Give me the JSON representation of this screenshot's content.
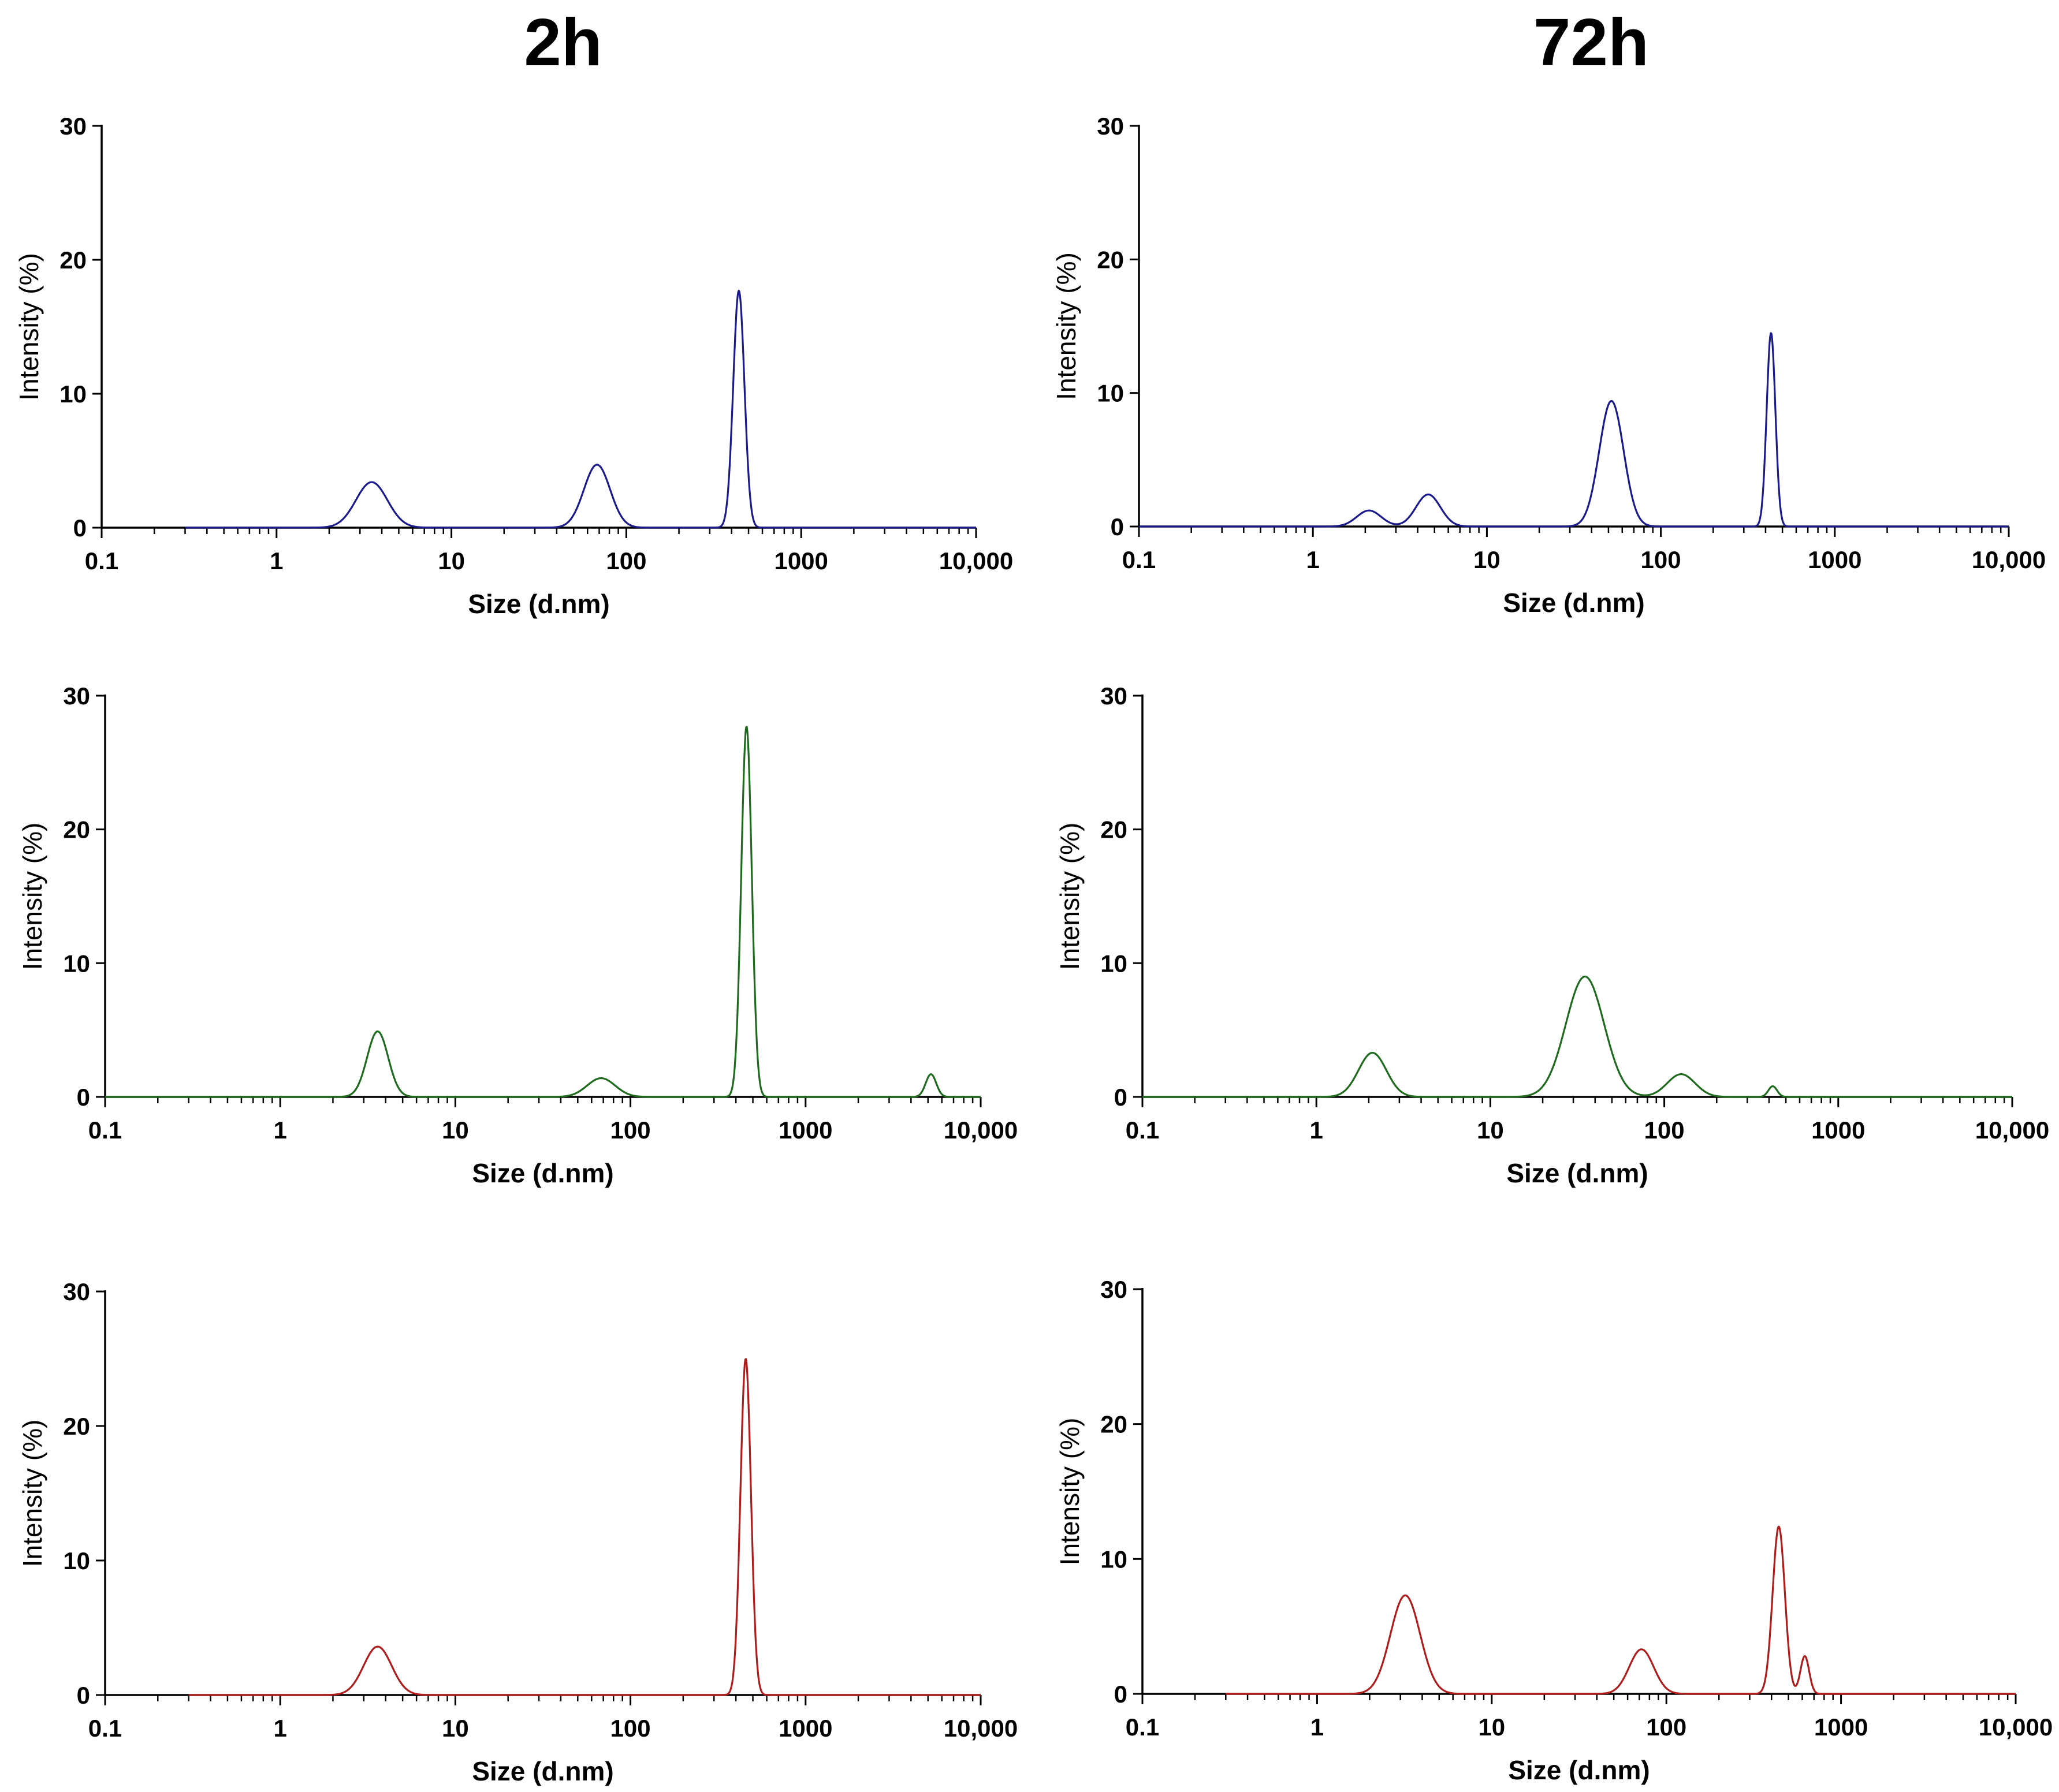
{
  "column_titles": [
    "2h",
    "72h"
  ],
  "series_colors": {
    "blue": "#1a1a8c",
    "green": "#1e6b1e",
    "red": "#b01c1c"
  },
  "chart_data": [
    {
      "id": "p00",
      "column": "2h",
      "row": 1,
      "type": "line",
      "color": "blue",
      "xlabel": "Size (d.nm)",
      "ylabel": "Intensity (%)",
      "xscale": "log",
      "xlim": [
        0.1,
        10000
      ],
      "ylim": [
        0,
        30
      ],
      "x_ticks": [
        "0.1",
        "1",
        "10",
        "100",
        "1000",
        "10,000"
      ],
      "y_ticks": [
        "0",
        "10",
        "20",
        "30"
      ],
      "baseline_range": [
        0.3,
        10000
      ],
      "peaks": [
        {
          "x": 3.5,
          "y": 3.4,
          "w": 0.09
        },
        {
          "x": 68,
          "y": 4.7,
          "w": 0.075
        },
        {
          "x": 440,
          "y": 17.7,
          "w": 0.032
        }
      ]
    },
    {
      "id": "p10",
      "column": "2h",
      "row": 2,
      "type": "line",
      "color": "green",
      "xlabel": "Size (d.nm)",
      "ylabel": "Intensity (%)",
      "xscale": "log",
      "xlim": [
        0.1,
        10000
      ],
      "ylim": [
        0,
        30
      ],
      "x_ticks": [
        "0.1",
        "1",
        "10",
        "100",
        "1000",
        "10,000"
      ],
      "y_ticks": [
        "0",
        "10",
        "20",
        "30"
      ],
      "baseline_range": [
        0.1,
        10000
      ],
      "peaks": [
        {
          "x": 3.6,
          "y": 4.9,
          "w": 0.06
        },
        {
          "x": 68,
          "y": 1.4,
          "w": 0.08
        },
        {
          "x": 460,
          "y": 27.7,
          "w": 0.03
        },
        {
          "x": 5200,
          "y": 1.7,
          "w": 0.03
        }
      ]
    },
    {
      "id": "p20",
      "column": "2h",
      "row": 3,
      "type": "line",
      "color": "red",
      "xlabel": "Size (d.nm)",
      "ylabel": "Intensity (%)",
      "xscale": "log",
      "xlim": [
        0.1,
        10000
      ],
      "ylim": [
        0,
        30
      ],
      "x_ticks": [
        "0.1",
        "1",
        "10",
        "100",
        "1000",
        "10,000"
      ],
      "y_ticks": [
        "0",
        "10",
        "20",
        "30"
      ],
      "baseline_range": [
        0.3,
        10000
      ],
      "peaks": [
        {
          "x": 3.6,
          "y": 3.6,
          "w": 0.08
        },
        {
          "x": 455,
          "y": 25.0,
          "w": 0.03
        }
      ]
    },
    {
      "id": "p01",
      "column": "72h",
      "row": 1,
      "type": "line",
      "color": "blue",
      "xlabel": "Size (d.nm)",
      "ylabel": "Intensity (%)",
      "xscale": "log",
      "xlim": [
        0.1,
        10000
      ],
      "ylim": [
        0,
        30
      ],
      "x_ticks": [
        "0.1",
        "1",
        "10",
        "100",
        "1000",
        "10,000"
      ],
      "y_ticks": [
        "0",
        "10",
        "20",
        "30"
      ],
      "baseline_range": [
        0.1,
        10000
      ],
      "peaks": [
        {
          "x": 2.1,
          "y": 1.2,
          "w": 0.07
        },
        {
          "x": 4.6,
          "y": 2.4,
          "w": 0.07
        },
        {
          "x": 52,
          "y": 9.4,
          "w": 0.07
        },
        {
          "x": 430,
          "y": 14.5,
          "w": 0.025
        }
      ]
    },
    {
      "id": "p11",
      "column": "72h",
      "row": 2,
      "type": "line",
      "color": "green",
      "xlabel": "Size (d.nm)",
      "ylabel": "Intensity (%)",
      "xscale": "log",
      "xlim": [
        0.1,
        10000
      ],
      "ylim": [
        0,
        30
      ],
      "x_ticks": [
        "0.1",
        "1",
        "10",
        "100",
        "1000",
        "10,000"
      ],
      "y_ticks": [
        "0",
        "10",
        "20",
        "30"
      ],
      "baseline_range": [
        0.1,
        10000
      ],
      "peaks": [
        {
          "x": 2.1,
          "y": 3.3,
          "w": 0.08
        },
        {
          "x": 35,
          "y": 9.0,
          "w": 0.11
        },
        {
          "x": 125,
          "y": 1.7,
          "w": 0.08
        },
        {
          "x": 420,
          "y": 0.8,
          "w": 0.025
        }
      ]
    },
    {
      "id": "p21",
      "column": "72h",
      "row": 3,
      "type": "line",
      "color": "red",
      "xlabel": "Size (d.nm)",
      "ylabel": "Intensity (%)",
      "xscale": "log",
      "xlim": [
        0.1,
        10000
      ],
      "ylim": [
        0,
        30
      ],
      "x_ticks": [
        "0.1",
        "1",
        "10",
        "100",
        "1000",
        "10,000"
      ],
      "y_ticks": [
        "0",
        "10",
        "20",
        "30"
      ],
      "baseline_range": [
        0.3,
        10000
      ],
      "peaks": [
        {
          "x": 3.2,
          "y": 7.3,
          "w": 0.085
        },
        {
          "x": 72,
          "y": 3.3,
          "w": 0.07
        },
        {
          "x": 440,
          "y": 12.4,
          "w": 0.035
        },
        {
          "x": 620,
          "y": 2.8,
          "w": 0.025
        }
      ]
    }
  ]
}
